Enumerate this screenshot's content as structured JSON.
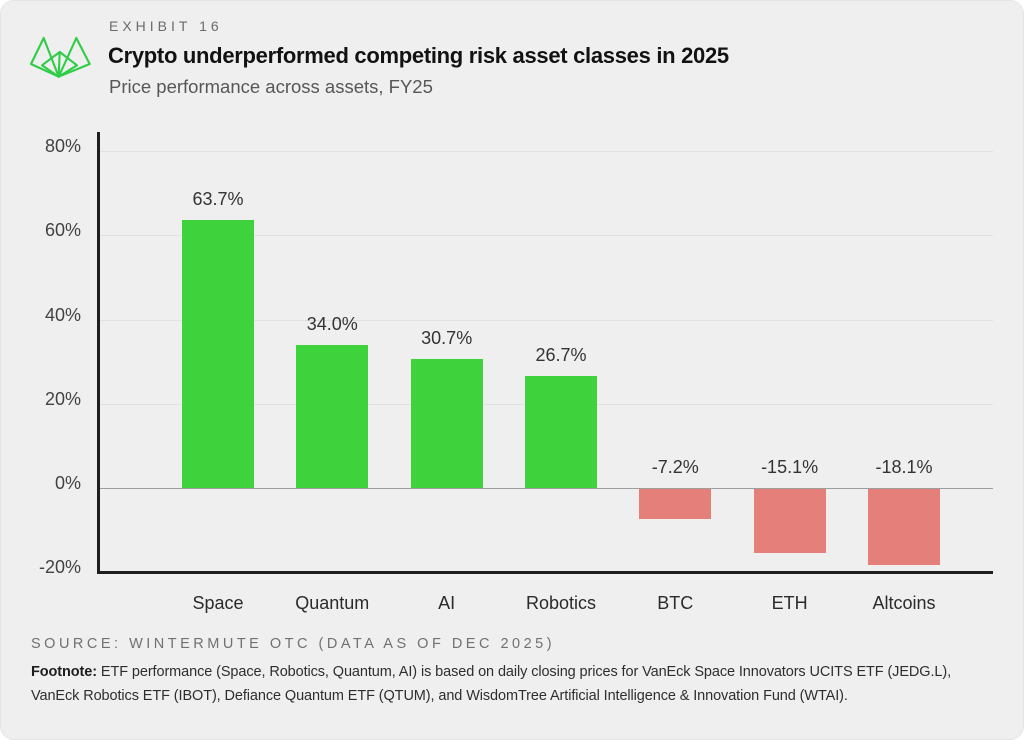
{
  "header": {
    "eyebrow": "EXHIBIT 16",
    "title": "Crypto underperformed competing risk asset classes in 2025",
    "subtitle": "Price performance across assets, FY25"
  },
  "logo": {
    "name": "wintermute-logo",
    "color": "#2fcd46"
  },
  "chart_data": {
    "type": "bar",
    "title": "Crypto underperformed competing risk asset classes in 2025",
    "subtitle": "Price performance across assets, FY25",
    "categories": [
      "Space",
      "Quantum",
      "AI",
      "Robotics",
      "BTC",
      "ETH",
      "Altcoins"
    ],
    "values": [
      63.7,
      34.0,
      30.7,
      26.7,
      -7.2,
      -15.1,
      -18.1
    ],
    "value_labels": [
      "63.7%",
      "34.0%",
      "30.7%",
      "26.7%",
      "-7.2%",
      "-15.1%",
      "-18.1%"
    ],
    "xlabel": "",
    "ylabel": "",
    "ylim": [
      -20,
      84
    ],
    "yticks": [
      80,
      60,
      40,
      20,
      0,
      -20
    ],
    "ytick_labels": [
      "80%",
      "60%",
      "40%",
      "20%",
      "0%",
      "-20%"
    ],
    "grid": true,
    "legend": null,
    "positive_color": "#3ed33c",
    "negative_color": "#e57f7a"
  },
  "footer": {
    "source": "SOURCE: WINTERMUTE OTC (DATA AS OF DEC 2025)",
    "footnote_label": "Footnote:",
    "footnote_text": "ETF performance (Space, Robotics, Quantum, AI) is based on daily closing prices for VanEck Space Innovators UCITS ETF (JEDG.L), VanEck Robotics ETF (IBOT), Defiance Quantum ETF (QTUM), and WisdomTree Artificial Intelligence & Innovation Fund (WTAI)."
  }
}
